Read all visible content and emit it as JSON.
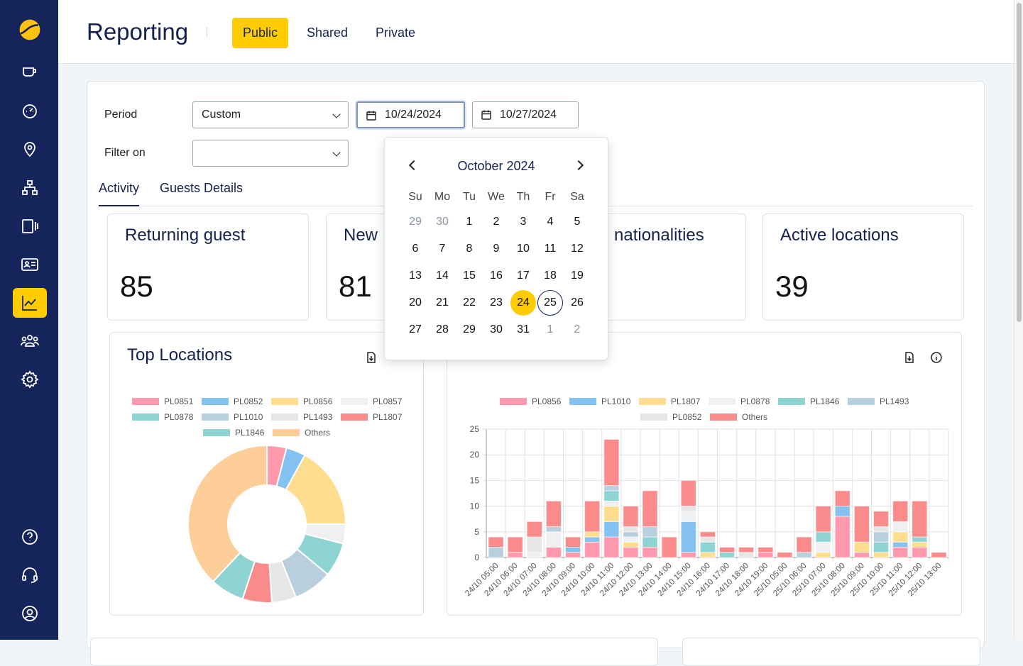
{
  "header": {
    "title": "Reporting",
    "tabs": [
      {
        "label": "Public",
        "active": true
      },
      {
        "label": "Shared"
      },
      {
        "label": "Private"
      }
    ]
  },
  "sidebar": {
    "items": [
      "logo",
      "cup-icon",
      "dashboard-icon",
      "location-icon",
      "network-icon",
      "device-icon",
      "id-card-icon",
      "chart-icon",
      "users-icon",
      "gear-icon"
    ],
    "bottom": [
      "help-icon",
      "headset-icon",
      "account-icon"
    ],
    "active": "chart-icon"
  },
  "filters": {
    "period_label": "Period",
    "period_value": "Custom",
    "filter_label": "Filter on",
    "filter_value": "",
    "start_date": "10/24/2024",
    "end_date": "10/27/2024"
  },
  "subtabs": [
    "Activity",
    "Guests Details"
  ],
  "cards": [
    {
      "title": "Returning guest",
      "value": "85"
    },
    {
      "title": "New",
      "value": "81"
    },
    {
      "title": "nationalities",
      "value": ""
    },
    {
      "title": "Active locations",
      "value": "39"
    }
  ],
  "calendar": {
    "month": "October 2024",
    "weekdays": [
      "Su",
      "Mo",
      "Tu",
      "We",
      "Th",
      "Fr",
      "Sa"
    ],
    "weeks": [
      [
        "29",
        "30",
        "1",
        "2",
        "3",
        "4",
        "5"
      ],
      [
        "6",
        "7",
        "8",
        "9",
        "10",
        "11",
        "12"
      ],
      [
        "13",
        "14",
        "15",
        "16",
        "17",
        "18",
        "19"
      ],
      [
        "20",
        "21",
        "22",
        "23",
        "24",
        "25",
        "26"
      ],
      [
        "27",
        "28",
        "29",
        "30",
        "31",
        "1",
        "2"
      ]
    ],
    "selected": "24",
    "today": "25"
  },
  "colors": {
    "accent": "#ffcc00",
    "sidebar": "#15245a",
    "PL0856": "#ff99ae",
    "PL1010": "#84c2f2",
    "PL1807": "#ffdd8f",
    "PL0878": "#eff0f2",
    "PL1846": "#8dd4d2",
    "PL1493": "#bacfdd",
    "PL0852": "#e6e6e6",
    "Others": "#f98b8b"
  },
  "chart_data": [
    {
      "type": "pie",
      "title": "Top Locations",
      "donut": true,
      "legend": "top",
      "labels": [
        "PL0851",
        "PL0852",
        "PL0856",
        "PL0857",
        "PL0878",
        "PL1010",
        "PL1493",
        "PL1807",
        "PL1846",
        "Others"
      ],
      "colors": [
        "#ff99ae",
        "#84c2f2",
        "#ffdd8f",
        "#eff0f2",
        "#8dd4d2",
        "#bacfdd",
        "#e6e6e6",
        "#f98b8b",
        "#8dd4d2",
        "#fdce98"
      ],
      "values": [
        4,
        4,
        17,
        4,
        7,
        8,
        5,
        6,
        7,
        38
      ]
    },
    {
      "type": "bar",
      "stacked": true,
      "title": "",
      "legend": "top",
      "ylim": [
        0,
        25
      ],
      "yticks": [
        0,
        5,
        10,
        15,
        20,
        25
      ],
      "grid": true,
      "categories": [
        "24/10 05:00",
        "24/10 06:00",
        "24/10 07:00",
        "24/10 08:00",
        "24/10 09:00",
        "24/10 10:00",
        "24/10 11:00",
        "24/10 12:00",
        "24/10 13:00",
        "24/10 14:00",
        "24/10 15:00",
        "24/10 16:00",
        "24/10 17:00",
        "24/10 18:00",
        "24/10 19:00",
        "25/10 05:00",
        "25/10 06:00",
        "25/10 07:00",
        "25/10 08:00",
        "25/10 09:00",
        "25/10 10:00",
        "25/10 11:00",
        "25/10 12:00",
        "25/10 13:00"
      ],
      "series": [
        {
          "name": "PL0856",
          "color": "#ff99ae",
          "values": [
            0,
            1,
            0,
            2,
            1,
            3,
            4,
            2,
            2,
            0,
            1,
            0,
            0,
            0,
            1,
            0,
            0,
            0,
            8,
            1,
            0,
            2,
            2,
            0
          ]
        },
        {
          "name": "PL1010",
          "color": "#84c2f2",
          "values": [
            0,
            0,
            0,
            0,
            1,
            1,
            3,
            0,
            0,
            0,
            6,
            0,
            0,
            0,
            0,
            0,
            0,
            0,
            2,
            0,
            0,
            1,
            0,
            0
          ]
        },
        {
          "name": "PL1807",
          "color": "#ffdd8f",
          "values": [
            0,
            0,
            0,
            0,
            0,
            1,
            3,
            1,
            0,
            0,
            0,
            1,
            0,
            0,
            0,
            0,
            0,
            1,
            0,
            2,
            1,
            2,
            1,
            0
          ]
        },
        {
          "name": "PL0878",
          "color": "#eff0f2",
          "values": [
            0,
            0,
            1,
            3,
            0,
            0,
            1,
            1,
            0,
            0,
            2,
            0,
            0,
            0,
            0,
            0,
            0,
            2,
            0,
            0,
            0,
            2,
            0,
            0
          ]
        },
        {
          "name": "PL1846",
          "color": "#8dd4d2",
          "values": [
            0,
            0,
            0,
            0,
            0,
            0,
            2,
            0,
            2,
            0,
            0,
            2,
            1,
            0,
            0,
            0,
            0,
            2,
            0,
            0,
            2,
            0,
            1,
            0
          ]
        },
        {
          "name": "PL1493",
          "color": "#bacfdd",
          "values": [
            2,
            0,
            0,
            1,
            0,
            0,
            1,
            1,
            2,
            0,
            0,
            0,
            0,
            0,
            0,
            0,
            1,
            0,
            0,
            0,
            2,
            0,
            0,
            0
          ]
        },
        {
          "name": "PL0852",
          "color": "#e6e6e6",
          "values": [
            0,
            0,
            3,
            0,
            0,
            0,
            0,
            1,
            0,
            0,
            1,
            1,
            0,
            1,
            0,
            0,
            0,
            0,
            0,
            0,
            1,
            0,
            0,
            0
          ]
        },
        {
          "name": "Others",
          "color": "#f98b8b",
          "values": [
            2,
            3,
            3,
            5,
            2,
            6,
            9,
            4,
            7,
            4,
            5,
            1,
            1,
            1,
            1,
            1,
            3,
            5,
            3,
            7,
            3,
            4,
            7,
            1
          ]
        }
      ]
    }
  ]
}
